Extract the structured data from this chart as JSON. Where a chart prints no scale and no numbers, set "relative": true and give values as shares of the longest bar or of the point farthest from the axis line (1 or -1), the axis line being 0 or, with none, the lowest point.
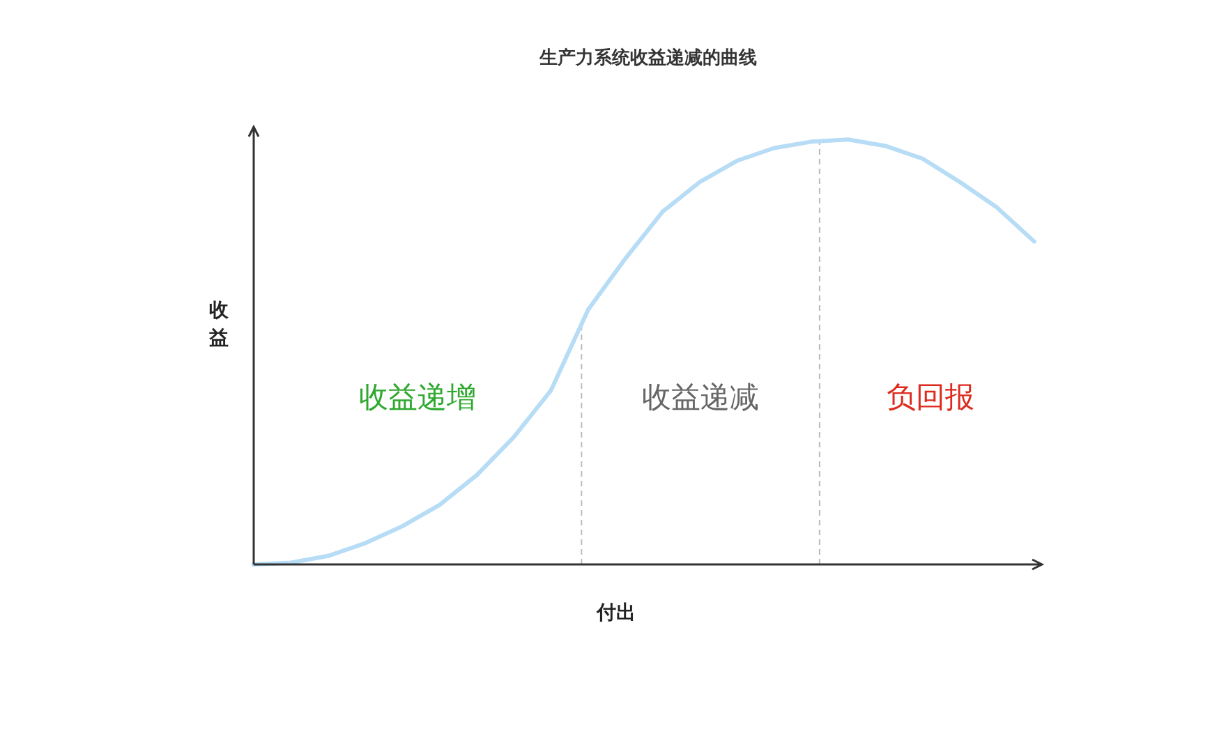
{
  "chart_data": {
    "type": "line",
    "relative": true,
    "title": "生产力系统收益递减的曲线",
    "xlabel": "付出",
    "ylabel": "收益",
    "categories": [
      null,
      null,
      null,
      null,
      null,
      null,
      null,
      null,
      null,
      null,
      null,
      null,
      null,
      null,
      null,
      null,
      null,
      null,
      null,
      null,
      null,
      null
    ],
    "series": [
      {
        "color": "#b7dcf5",
        "values": [
          0,
          0.004,
          0.02,
          0.05,
          0.09,
          0.14,
          0.21,
          0.3,
          0.41,
          0.6,
          0.72,
          0.83,
          0.9,
          0.95,
          0.98,
          0.995,
          1,
          0.985,
          0.955,
          0.9,
          0.84,
          0.76
        ]
      }
    ],
    "annotations": [
      "收益递增",
      "收益递减",
      "负回报"
    ]
  }
}
